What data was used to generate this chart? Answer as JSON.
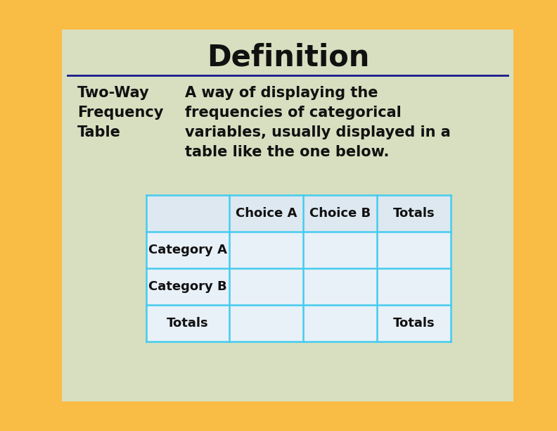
{
  "title": "Definition",
  "term": "Two-Way\nFrequency\nTable",
  "definition": "A way of displaying the\nfrequencies of categorical\nvariables, usually displayed in a\ntable like the one below.",
  "bg_outer": "#F9BC45",
  "bg_card": "#D8DFC0",
  "title_color": "#111111",
  "title_fontsize": 30,
  "term_fontsize": 15,
  "def_fontsize": 15,
  "divider_color": "#1a1a8c",
  "table_border_color": "#44CCEE",
  "table_header_bg": "#DDE8F0",
  "table_row_bg": "#E8F0F8",
  "table_headers": [
    "",
    "Choice A",
    "Choice B",
    "Totals"
  ],
  "table_rows": [
    [
      "Category A",
      "",
      "",
      ""
    ],
    [
      "Category B",
      "",
      "",
      ""
    ],
    [
      "Totals",
      "",
      "",
      "Totals"
    ]
  ]
}
